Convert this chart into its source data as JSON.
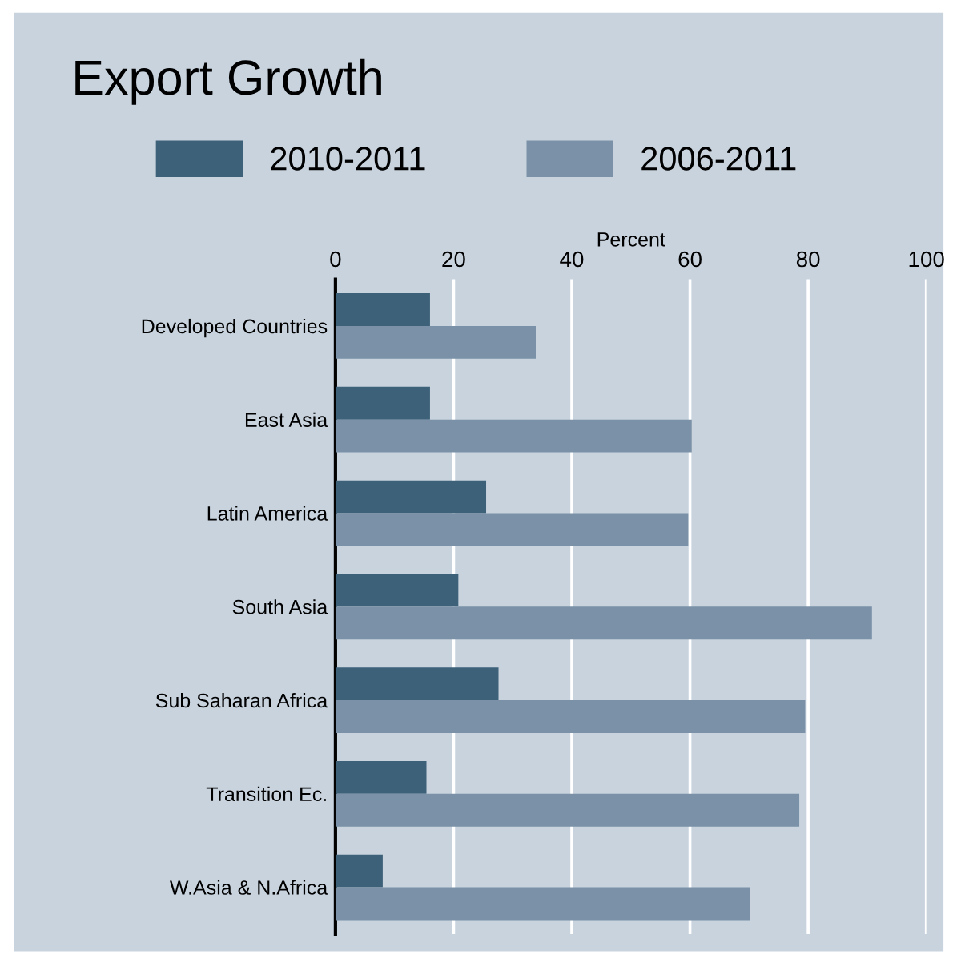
{
  "chart_data": {
    "type": "bar",
    "orientation": "horizontal",
    "title": "Export Growth",
    "xlabel": "Percent",
    "categories": [
      "Developed Countries",
      "East Asia",
      "Latin America",
      "South Asia",
      "Sub Saharan Africa",
      "Transition Ec.",
      "W.Asia & N.Africa"
    ],
    "series": [
      {
        "name": "2010-2011",
        "color": "#3d6178",
        "values": [
          16,
          16,
          25.5,
          20.8,
          27.6,
          15.4,
          8
        ]
      },
      {
        "name": "2006-2011",
        "color": "#7a91a7",
        "values": [
          33.9,
          60.3,
          59.7,
          90.8,
          79.5,
          78.5,
          70.2
        ]
      }
    ],
    "xlim": [
      0,
      100
    ],
    "xticks": [
      0,
      20,
      40,
      60,
      80,
      100
    ],
    "grid": "x",
    "legend": "top"
  }
}
